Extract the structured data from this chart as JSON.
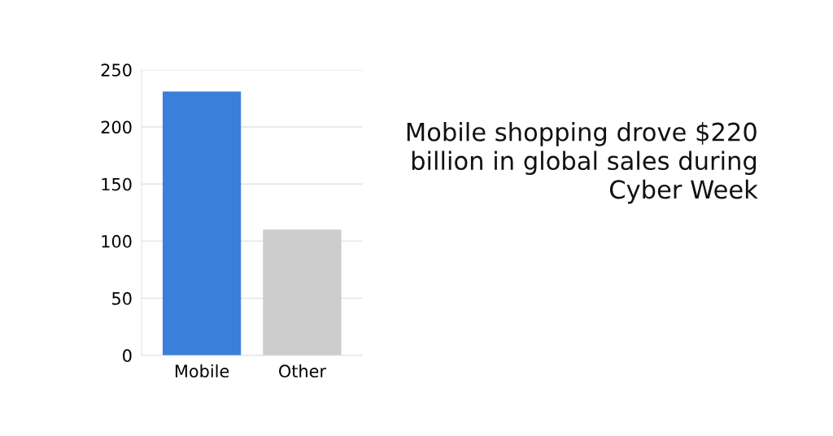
{
  "chart_data": {
    "type": "bar",
    "categories": [
      "Mobile",
      "Other"
    ],
    "values": [
      231,
      110
    ],
    "colors": [
      "#3a7fd9",
      "#cccccc"
    ],
    "ylim": [
      0,
      250
    ],
    "yticks": [
      0,
      50,
      100,
      150,
      200,
      250
    ],
    "grid": "y",
    "annotations": [
      "Mobile shopping drove $220 billion in global sales during Cyber Week"
    ]
  }
}
